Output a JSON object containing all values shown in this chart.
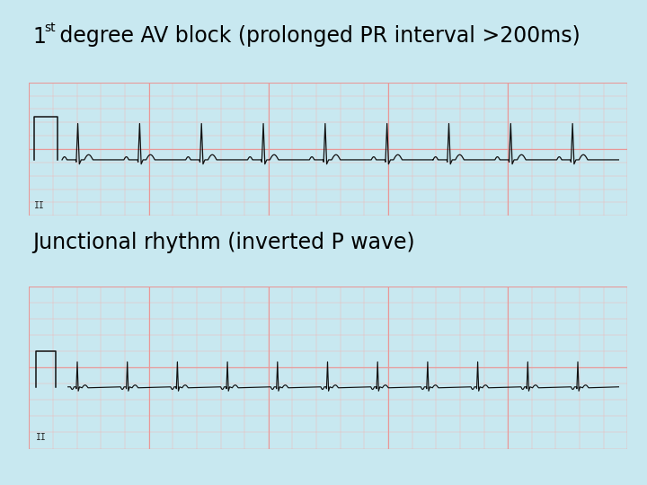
{
  "bg_color": "#c8e8f0",
  "title1": "1",
  "title1_super": "st",
  "title1_rest": " degree AV block (prolonged PR interval >200ms)",
  "title2": "Junctional rhythm (inverted P wave)",
  "title_fontsize": 17,
  "ecg1_bg": "#fdf0f0",
  "ecg2_bg": "#fdf0f0",
  "grid_minor_color": "#f0b8b8",
  "grid_major_color": "#e89898",
  "ecg_line_color": "#111111",
  "label_color": "#222222",
  "strip1_label": "II",
  "strip2_label": "II",
  "fig_width": 7.2,
  "fig_height": 5.4
}
